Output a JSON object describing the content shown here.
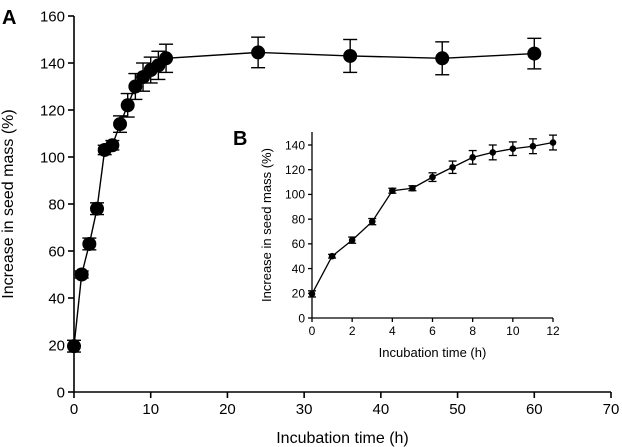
{
  "chart_data": [
    {
      "panel": "A",
      "type": "scatter",
      "xlabel": "Incubation time (h)",
      "ylabel": "Increase in seed mass (%)",
      "xlim": [
        0,
        70
      ],
      "ylim": [
        0,
        160
      ],
      "xticks": [
        0,
        10,
        20,
        30,
        40,
        50,
        60,
        70
      ],
      "yticks": [
        0,
        20,
        40,
        60,
        80,
        100,
        120,
        140,
        160
      ],
      "grid": false,
      "series": [
        {
          "x": [
            0,
            1,
            2,
            3,
            4,
            5,
            6,
            7,
            8,
            9,
            10,
            11,
            12,
            24,
            36,
            48,
            60
          ],
          "y": [
            19.5,
            50,
            63,
            78,
            103,
            105,
            114,
            122,
            130,
            134,
            137,
            139,
            142,
            144.5,
            143,
            142,
            144
          ],
          "err": [
            2.5,
            1.5,
            2.5,
            2.5,
            2,
            2,
            3.5,
            5,
            5.5,
            6,
            5.5,
            6,
            6,
            6.5,
            7,
            7,
            6.5
          ]
        }
      ]
    },
    {
      "panel": "B",
      "type": "line",
      "xlabel": "Incubation time (h)",
      "ylabel": "Increase in seed mass (%)",
      "xlim": [
        0,
        12
      ],
      "ylim": [
        0,
        140
      ],
      "xticks": [
        0,
        2,
        4,
        6,
        8,
        10,
        12
      ],
      "yticks": [
        0,
        20,
        40,
        60,
        80,
        100,
        120,
        140
      ],
      "grid": false,
      "series": [
        {
          "x": [
            0,
            1,
            2,
            3,
            4,
            5,
            6,
            7,
            8,
            9,
            10,
            11,
            12
          ],
          "y": [
            19.5,
            50,
            63,
            78,
            103,
            105,
            114,
            122,
            130,
            134,
            137,
            139,
            142
          ],
          "err": [
            2.5,
            1.5,
            2.5,
            2.5,
            2,
            2,
            3.5,
            5,
            5.5,
            6,
            5.5,
            6,
            6
          ]
        }
      ]
    }
  ]
}
